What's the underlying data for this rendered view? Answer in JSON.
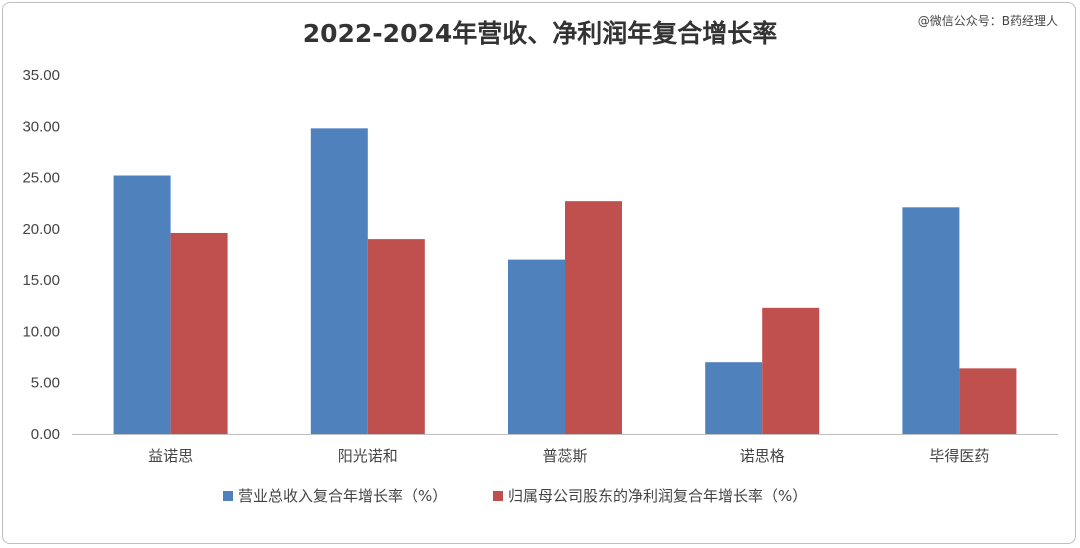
{
  "title": "2022-2024年营收、净利润年复合增长率",
  "watermark": "@微信公众号：B药经理人",
  "colors": {
    "series1": "#4f81bd",
    "series2": "#c0504d",
    "axis": "#bfbfbf",
    "text": "#444444"
  },
  "chart_data": {
    "type": "bar",
    "title": "2022-2024年营收、净利润年复合增长率",
    "categories": [
      "益诺思",
      "阳光诺和",
      "普蕊斯",
      "诺思格",
      "毕得医药"
    ],
    "series": [
      {
        "name": "营业总收入复合年增长率（%）",
        "values": [
          25.2,
          29.8,
          17.0,
          7.0,
          22.1
        ]
      },
      {
        "name": "归属母公司股东的净利润复合年增长率（%）",
        "values": [
          19.6,
          19.0,
          22.7,
          12.3,
          6.4
        ]
      }
    ],
    "ylim": [
      0,
      35
    ],
    "ytick_step": 5,
    "ytick_labels": [
      "0.00",
      "5.00",
      "10.00",
      "15.00",
      "20.00",
      "25.00",
      "30.00",
      "35.00"
    ],
    "grid": false,
    "legend_position": "bottom",
    "xlabel": "",
    "ylabel": ""
  }
}
